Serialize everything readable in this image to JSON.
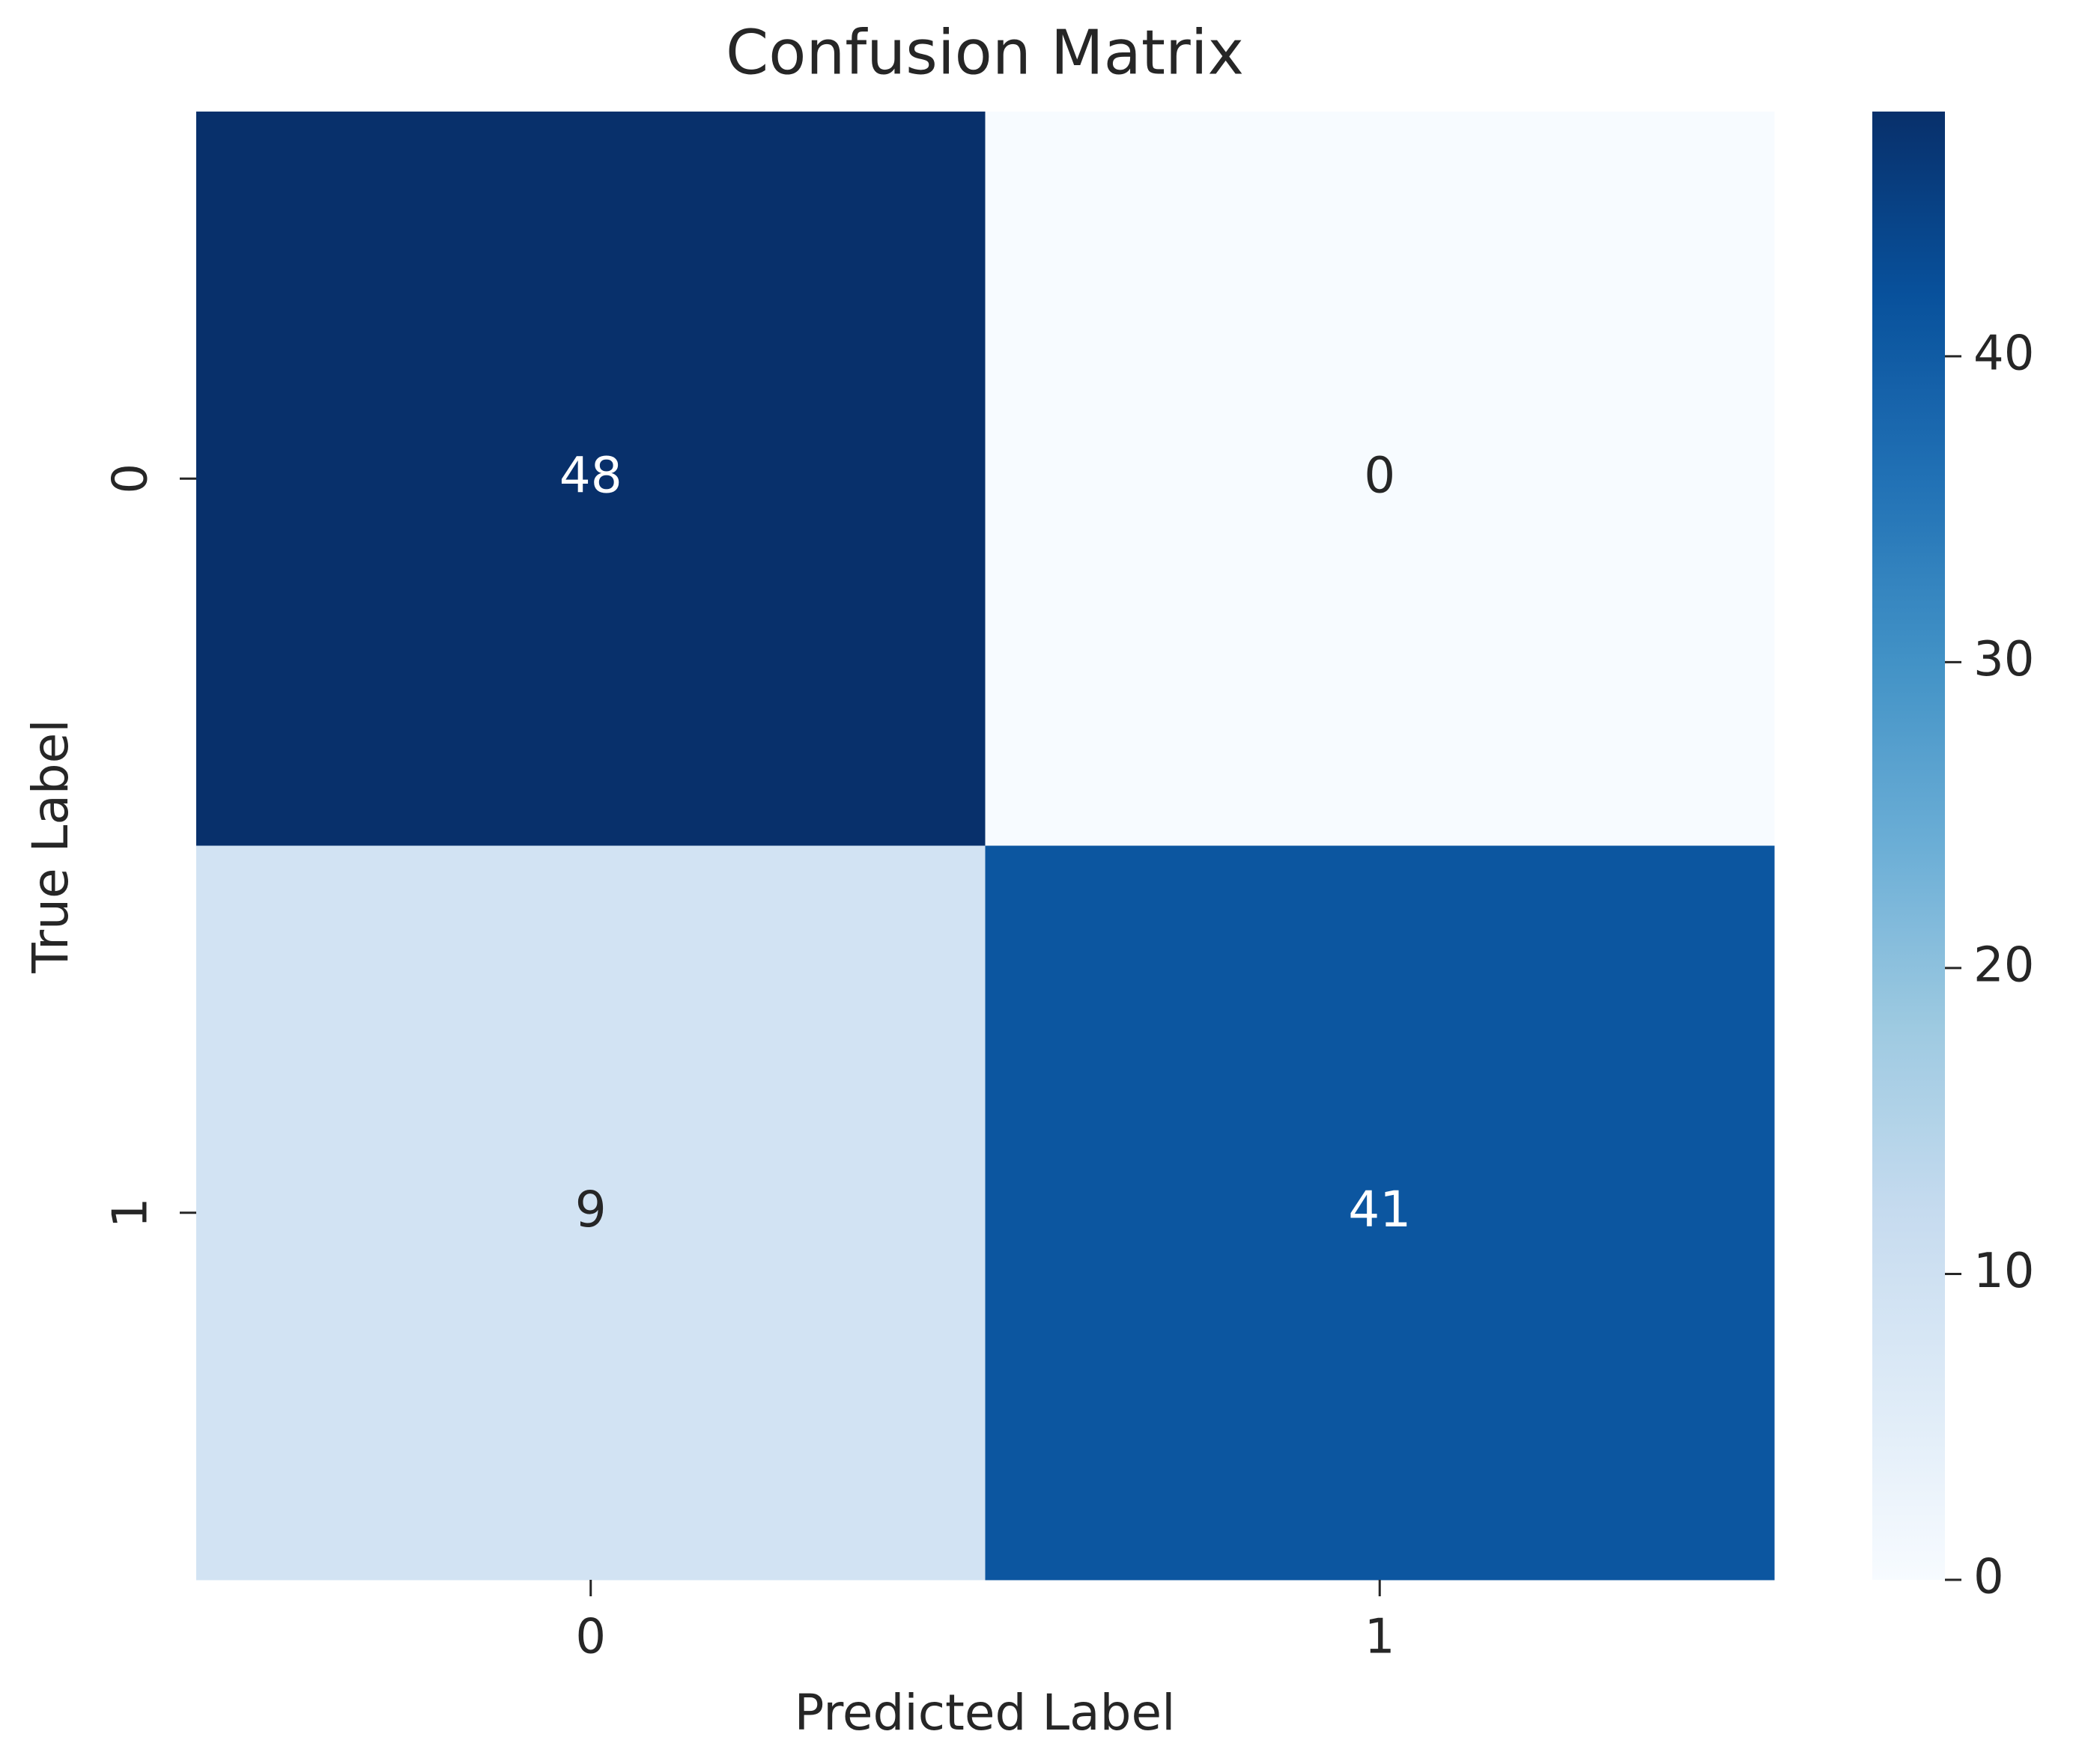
{
  "chart_data": {
    "type": "heatmap",
    "title": "Confusion Matrix",
    "xlabel": "Predicted Label",
    "ylabel": "True Label",
    "x_categories": [
      "0",
      "1"
    ],
    "y_categories": [
      "0",
      "1"
    ],
    "values": [
      [
        48,
        0
      ],
      [
        9,
        41
      ]
    ],
    "colormap": "Blues",
    "clim": [
      0,
      48
    ],
    "cticks": [
      0,
      10,
      20,
      30,
      40
    ]
  }
}
